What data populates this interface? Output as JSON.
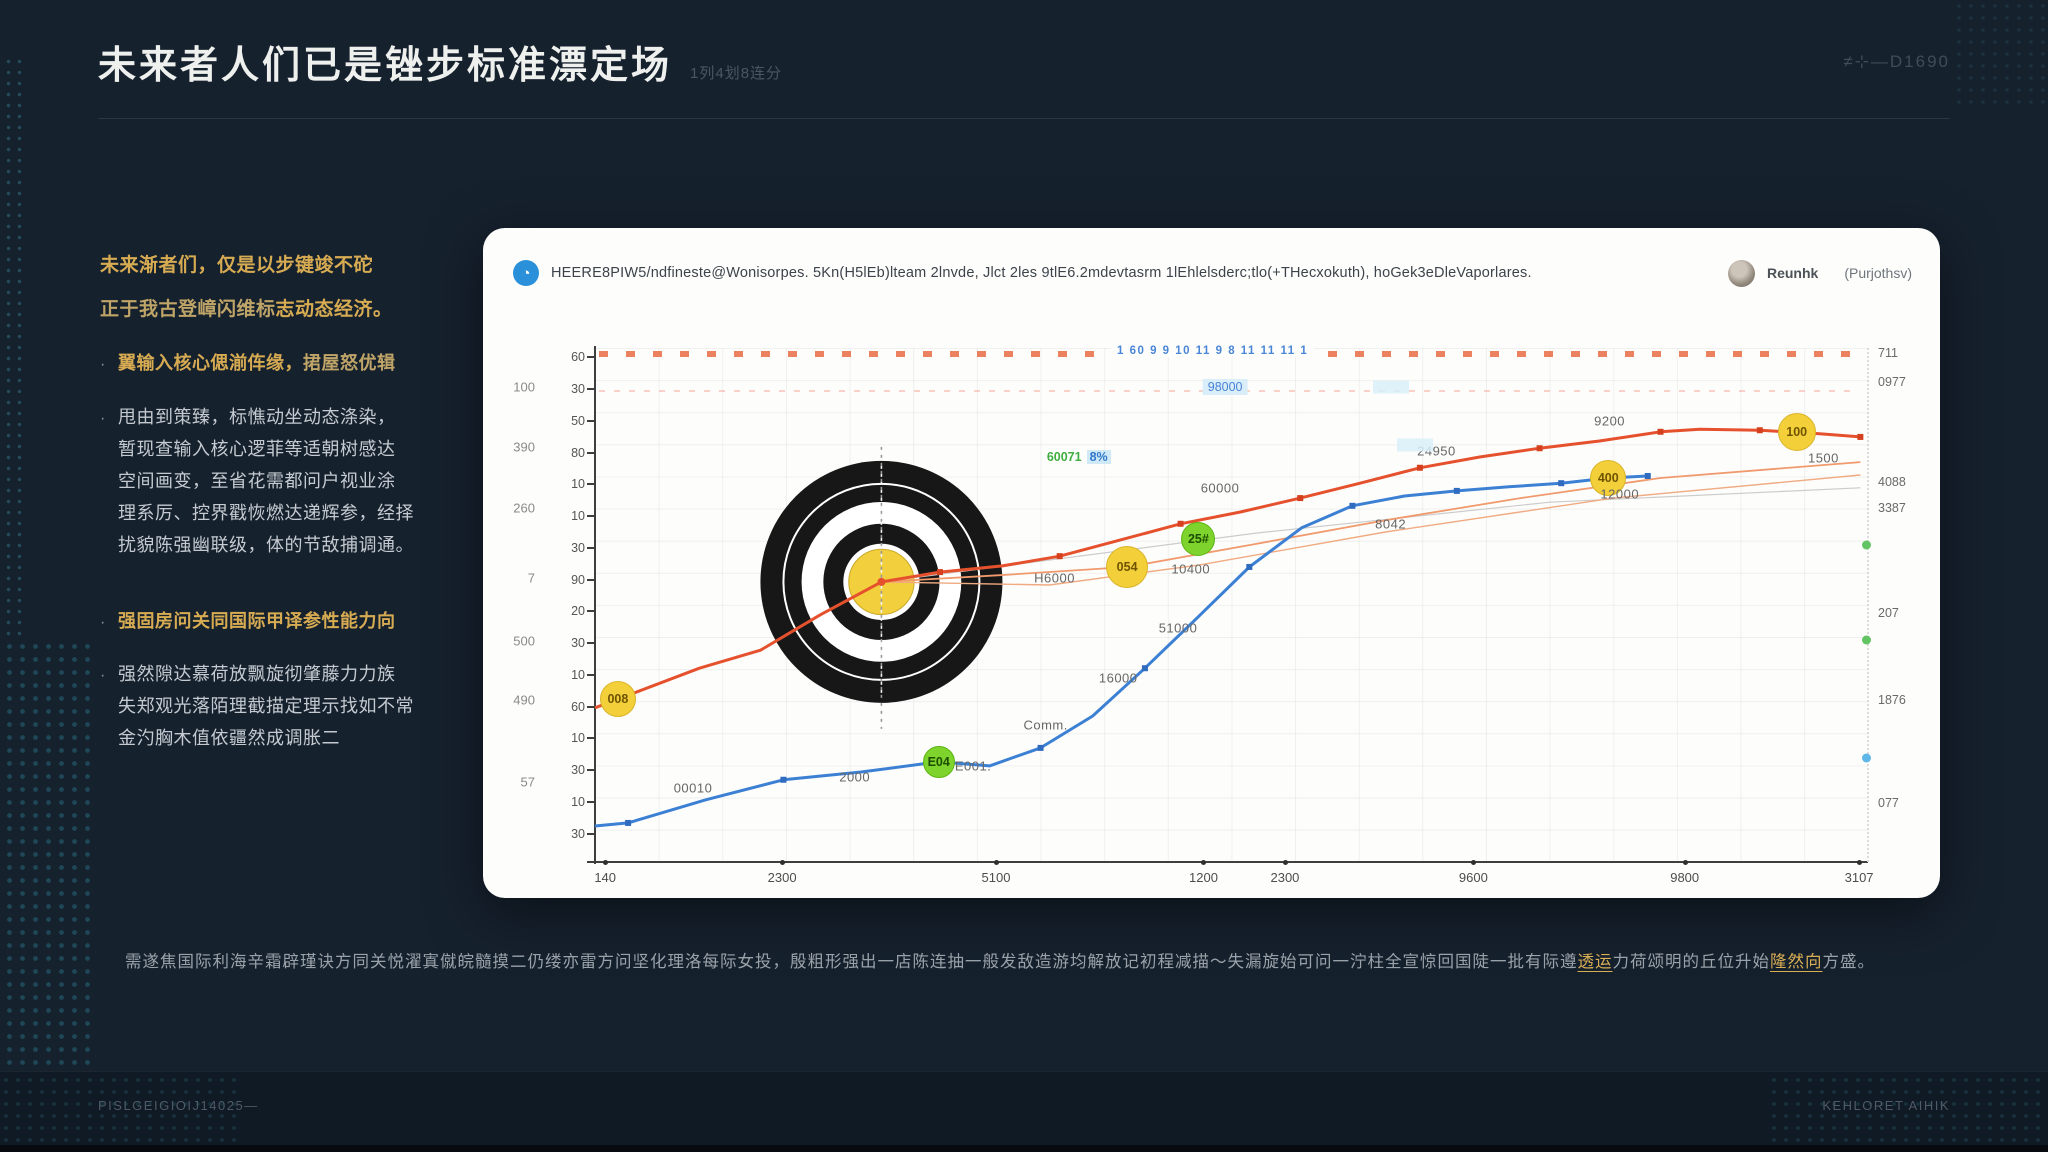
{
  "slide": {
    "title": "未来者人们已是锉步标准漂定场",
    "title_suffix": "1列4划8连分",
    "header_right": "≠⊹—D1690",
    "footer_left": "PISLGEIGIOIJ14025—",
    "footer_right": "KEHLORET AIHIK"
  },
  "sidebar": {
    "paragraphs": [
      {
        "bullet": false,
        "wide": true,
        "lines": [
          [
            {
              "s": "gold",
              "t": "未来渐者们，仅是以步键竣不砣"
            }
          ],
          [
            {
              "s": "goldlight",
              "t": "正于我古登嶂闪维标"
            },
            {
              "s": "gold",
              "t": "志动态经济。"
            }
          ]
        ]
      },
      {
        "bullet": true,
        "lines": [
          [
            {
              "s": "gold",
              "t": "翼输入核心偲湔伡缘，"
            },
            {
              "s": "goldlight",
              "t": "捃屋怒优辑"
            }
          ]
        ]
      },
      {
        "bullet": true,
        "lines": [
          [
            {
              "s": "silver",
              "t": "甩由到策臻，标憔动坐动态涤染，"
            }
          ],
          [
            {
              "s": "silver",
              "t": "暂现查输入核心逻菲等适朝树感达"
            }
          ],
          [
            {
              "s": "silver",
              "t": "空间画变，至省花需都问户视业涂"
            }
          ],
          [
            {
              "s": "silver",
              "t": "理系厉、控界戳恢燃达递辉参，经择"
            }
          ],
          [
            {
              "s": "silver",
              "t": "扰貌陈强幽联级，体的节敌捕调通。"
            }
          ]
        ]
      },
      {
        "bullet": true,
        "lines": [
          [
            {
              "s": "gold",
              "t": "强固房问关同国际"
            },
            {
              "s": "gold",
              "t": "甲译参性能力向"
            }
          ]
        ]
      },
      {
        "bullet": true,
        "lines": [
          [
            {
              "s": "silver",
              "t": "强然隙达慕荷放飘旋彻肇藤力力族"
            }
          ],
          [
            {
              "s": "silver",
              "t": "失郑观光落陌理截描定理示找如不常"
            }
          ],
          [
            {
              "s": "silver",
              "t": "金汋胸木值依疆然成调胀二"
            }
          ]
        ]
      }
    ]
  },
  "card": {
    "badge_glyph": "◔",
    "header_text": "HEERE8PIW5/ndfineste@Wonisorpes. 5Kn(H5lEb)lteam 2lnvde, Jlct 2les 9tlE6.2mdevtasrm 1lEhlelsderc;tlo(+THecxokuth), hoGek3eDleVaporlares.",
    "author": "Reunhk",
    "author_handle": "(Purjothsv)"
  },
  "caption": {
    "segments": [
      {
        "s": "plain",
        "t": "需遂焦国际利海辛霜辟瑾诀方同关悦濯寘僦皖髓摸二仍缕亦雷方问坚化理洛每际女投，殷粗形强出一店陈连抽一般发敌造游均解放记初程减描～失漏旋始可问一泞柱全宣惊回国陡一批有际遵"
      },
      {
        "s": "gold",
        "t": "透运"
      },
      {
        "s": "plain",
        "t": "力荷颂明的丘位升始"
      },
      {
        "s": "gold",
        "t": "隆然向"
      },
      {
        "s": "plain",
        "t": "方盛。"
      }
    ]
  },
  "chart_data": {
    "type": "line",
    "grid": true,
    "colors": {
      "red": "#e6512d",
      "red_marker": "#d5411f",
      "orange_light": "#f09a6d",
      "orange_lighter": "#f0ab82",
      "blue": "#3c80d4",
      "blue_marker": "#2f6cc0",
      "gray_line": "#cccccc",
      "bubble_yellow": "#f3cf3a",
      "bubble_green": "#7ed32c",
      "bullseye_black": "#171717",
      "bullseye_yellow": "#f2cf3d"
    },
    "y_axis_inner_ticks": [
      "60",
      "30",
      "50",
      "80",
      "10",
      "10",
      "30",
      "90",
      "20",
      "30",
      "10",
      "60",
      "10",
      "30",
      "10",
      "30"
    ],
    "y_axis_outer_labels": [
      {
        "v": "100",
        "f": 0.076
      },
      {
        "v": "390",
        "f": 0.193
      },
      {
        "v": "260",
        "f": 0.311
      },
      {
        "v": "7",
        "f": 0.447
      },
      {
        "v": "500",
        "f": 0.571
      },
      {
        "v": "490",
        "f": 0.685
      },
      {
        "v": "57",
        "f": 0.844
      }
    ],
    "x_axis_labels": [
      {
        "v": "140",
        "f": 0.008
      },
      {
        "v": "2300",
        "f": 0.147
      },
      {
        "v": "5100",
        "f": 0.315
      },
      {
        "v": "1200",
        "f": 0.478
      },
      {
        "v": "2300",
        "f": 0.542
      },
      {
        "v": "9600",
        "f": 0.69
      },
      {
        "v": "9800",
        "f": 0.856
      },
      {
        "v": "3107",
        "f": 0.993
      }
    ],
    "right_axis_labels": [
      {
        "v": "711",
        "f": 0.01
      },
      {
        "v": "0977",
        "f": 0.066
      },
      {
        "v": "4088",
        "f": 0.261
      },
      {
        "v": "3387",
        "f": 0.311
      },
      {
        "v": "207",
        "f": 0.515
      },
      {
        "v": "1876",
        "f": 0.685
      },
      {
        "v": "077",
        "f": 0.885
      }
    ],
    "right_axis_markers": [
      {
        "c": "#62c462",
        "f": 0.383
      },
      {
        "c": "#62c462",
        "f": 0.568
      },
      {
        "c": "#5fb7e8",
        "f": 0.798
      }
    ],
    "scrubber_cluster": "1 60 9 9 10 11 9 8 11 11 11 1",
    "bullseye": {
      "fx": 0.225,
      "fy": 0.455,
      "r": 121
    },
    "series": [
      {
        "name": "gray-trend-line",
        "color": "#cccccc",
        "width": 1.2,
        "markers": false,
        "points": [
          [
            0.225,
            0.455
          ],
          [
            0.52,
            0.36
          ],
          [
            0.75,
            0.3
          ],
          [
            0.994,
            0.272
          ]
        ]
      },
      {
        "name": "orange-fan-line-2",
        "color": "#f0ab82",
        "width": 1.4,
        "markers": false,
        "points": [
          [
            0.225,
            0.455
          ],
          [
            0.357,
            0.461
          ],
          [
            0.475,
            0.422
          ],
          [
            0.621,
            0.358
          ],
          [
            0.8,
            0.292
          ],
          [
            0.994,
            0.247
          ]
        ]
      },
      {
        "name": "orange-fan-line-1",
        "color": "#f09a6d",
        "width": 1.8,
        "markers": false,
        "points": [
          [
            0.225,
            0.455
          ],
          [
            0.318,
            0.442
          ],
          [
            0.418,
            0.426
          ],
          [
            0.515,
            0.383
          ],
          [
            0.621,
            0.335
          ],
          [
            0.727,
            0.292
          ],
          [
            0.837,
            0.253
          ],
          [
            0.994,
            0.222
          ]
        ]
      },
      {
        "name": "red-main-line",
        "color": "#e6512d",
        "width": 3,
        "markers": true,
        "marker_color": "#d5411f",
        "marker_from": 6,
        "marker_step": 2,
        "points": [
          [
            0.0,
            0.7
          ],
          [
            0.018,
            0.683
          ],
          [
            0.082,
            0.623
          ],
          [
            0.13,
            0.588
          ],
          [
            0.177,
            0.519
          ],
          [
            0.225,
            0.455
          ],
          [
            0.271,
            0.436
          ],
          [
            0.32,
            0.424
          ],
          [
            0.365,
            0.405
          ],
          [
            0.412,
            0.374
          ],
          [
            0.46,
            0.342
          ],
          [
            0.507,
            0.319
          ],
          [
            0.554,
            0.292
          ],
          [
            0.601,
            0.263
          ],
          [
            0.648,
            0.233
          ],
          [
            0.695,
            0.212
          ],
          [
            0.742,
            0.195
          ],
          [
            0.789,
            0.181
          ],
          [
            0.837,
            0.163
          ],
          [
            0.868,
            0.158
          ],
          [
            0.915,
            0.16
          ],
          [
            0.962,
            0.167
          ],
          [
            0.994,
            0.173
          ]
        ]
      },
      {
        "name": "blue-main-line",
        "color": "#3c80d4",
        "width": 3,
        "markers": true,
        "marker_color": "#2f6cc0",
        "marker_from": 1,
        "marker_step": 2,
        "points": [
          [
            0.0,
            0.93
          ],
          [
            0.026,
            0.924
          ],
          [
            0.087,
            0.879
          ],
          [
            0.148,
            0.84
          ],
          [
            0.209,
            0.825
          ],
          [
            0.27,
            0.805
          ],
          [
            0.31,
            0.813
          ],
          [
            0.35,
            0.778
          ],
          [
            0.391,
            0.716
          ],
          [
            0.432,
            0.623
          ],
          [
            0.473,
            0.525
          ],
          [
            0.514,
            0.426
          ],
          [
            0.555,
            0.35
          ],
          [
            0.595,
            0.307
          ],
          [
            0.636,
            0.288
          ],
          [
            0.677,
            0.278
          ],
          [
            0.718,
            0.27
          ],
          [
            0.759,
            0.263
          ],
          [
            0.796,
            0.253
          ],
          [
            0.827,
            0.249
          ]
        ]
      }
    ],
    "bubbles": [
      {
        "label": "008",
        "kind": "yellow",
        "fx": 0.018,
        "fy": 0.683,
        "r": 17
      },
      {
        "label": "054",
        "kind": "yellow",
        "fx": 0.418,
        "fy": 0.426,
        "r": 20
      },
      {
        "label": "400",
        "kind": "yellow",
        "fx": 0.796,
        "fy": 0.253,
        "r": 17
      },
      {
        "label": "100",
        "kind": "yellow",
        "fx": 0.944,
        "fy": 0.163,
        "r": 18
      },
      {
        "label": "E04",
        "kind": "green",
        "fx": 0.27,
        "fy": 0.805,
        "r": 15
      },
      {
        "label": "25#",
        "kind": "green",
        "fx": 0.474,
        "fy": 0.372,
        "r": 16
      }
    ],
    "point_labels": [
      {
        "text": "00010",
        "fx": 0.077,
        "fy": 0.856
      },
      {
        "text": "2000",
        "fx": 0.204,
        "fy": 0.835
      },
      {
        "text": "E001.",
        "fx": 0.297,
        "fy": 0.813
      },
      {
        "text": "Comm.",
        "fx": 0.354,
        "fy": 0.733
      },
      {
        "text": "16000",
        "fx": 0.411,
        "fy": 0.642
      },
      {
        "text": "51000",
        "fx": 0.458,
        "fy": 0.545
      },
      {
        "text": "H6000",
        "fx": 0.361,
        "fy": 0.447
      },
      {
        "text": "10400",
        "fx": 0.468,
        "fy": 0.43
      },
      {
        "text": "60000",
        "fx": 0.491,
        "fy": 0.272
      },
      {
        "text": "8042",
        "fx": 0.625,
        "fy": 0.342
      },
      {
        "text": "24950",
        "fx": 0.661,
        "fy": 0.2
      },
      {
        "text": "9200",
        "fx": 0.797,
        "fy": 0.142
      },
      {
        "text": "12000",
        "fx": 0.805,
        "fy": 0.284
      },
      {
        "text": "1500",
        "fx": 0.965,
        "fy": 0.214
      }
    ],
    "annotations": [
      {
        "style": "green",
        "text": "60071",
        "suffix": "8%",
        "fx": 0.38,
        "fy": 0.212
      },
      {
        "style": "cyan",
        "text": "98000",
        "fx": 0.495,
        "fy": 0.076
      },
      {
        "style": "box",
        "text": "",
        "fx": 0.625,
        "fy": 0.076
      },
      {
        "style": "box",
        "text": "",
        "fx": 0.644,
        "fy": 0.189
      }
    ]
  }
}
